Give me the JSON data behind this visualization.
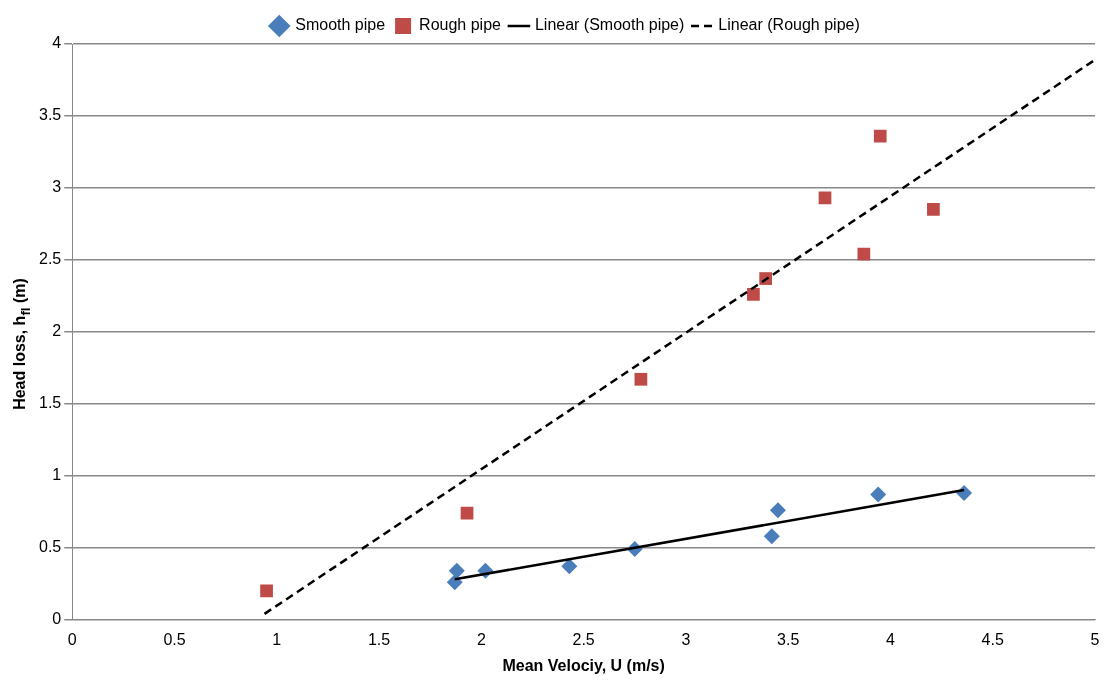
{
  "chart_data": {
    "type": "scatter",
    "xlabel": "Mean Velociy, U (m/s)",
    "ylabel": "Head loss, h$_{fl}$ (m)",
    "xlim": [
      0,
      5
    ],
    "xticks": [
      0,
      0.5,
      1,
      1.5,
      2,
      2.5,
      3,
      3.5,
      4,
      4.5,
      5
    ],
    "ylim": [
      0,
      4
    ],
    "yticks": [
      0,
      0.5,
      1,
      1.5,
      2,
      2.5,
      3,
      3.5,
      4
    ],
    "grid": "y",
    "legend": "top",
    "series": [
      {
        "name": "Smooth pipe",
        "type": "scatter",
        "color": "#4a7ebb",
        "marker": "diamond",
        "x": [
          1.87,
          1.88,
          2.02,
          2.43,
          2.75,
          3.42,
          3.45,
          3.94,
          4.36
        ],
        "values": [
          0.26,
          0.34,
          0.34,
          0.37,
          0.49,
          0.58,
          0.76,
          0.87,
          0.88
        ]
      },
      {
        "name": "Rough pipe",
        "type": "scatter",
        "color": "#be4b48",
        "marker": "square",
        "x": [
          0.95,
          1.93,
          2.78,
          3.33,
          3.39,
          3.68,
          3.87,
          3.95,
          4.21
        ],
        "values": [
          0.2,
          0.74,
          1.67,
          2.26,
          2.37,
          2.93,
          2.54,
          3.36,
          2.85
        ]
      },
      {
        "name": "Linear (Smooth pipe)",
        "type": "line",
        "color": "#000000",
        "marker": "none",
        "line_style": "solid",
        "x": [
          1.87,
          4.36
        ],
        "values": [
          0.28,
          0.9
        ]
      },
      {
        "name": "Linear (Rough pipe)",
        "type": "line",
        "color": "#000000",
        "marker": "none",
        "line_style": "dashed",
        "x": [
          0.94,
          5
        ],
        "values": [
          0.04,
          3.89
        ]
      }
    ]
  }
}
